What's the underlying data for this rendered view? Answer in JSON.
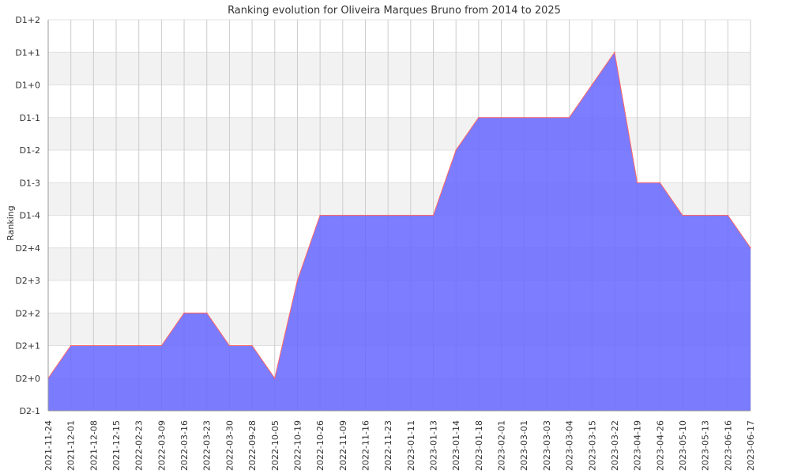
{
  "chart_data": {
    "type": "area",
    "title": "Ranking evolution for Oliveira Marques Bruno from 2014 to 2025",
    "xlabel": "",
    "ylabel": "Ranking",
    "y_levels": [
      "D2-1",
      "D2+0",
      "D2+1",
      "D2+2",
      "D2+3",
      "D2+4",
      "D1-4",
      "D1-3",
      "D1-2",
      "D1-1",
      "D1+0",
      "D1+1",
      "D1+2"
    ],
    "categories": [
      "2021-11-24",
      "2021-12-01",
      "2021-12-08",
      "2021-12-15",
      "2022-02-23",
      "2022-03-09",
      "2022-03-16",
      "2022-03-23",
      "2022-03-30",
      "2022-09-28",
      "2022-10-05",
      "2022-10-19",
      "2022-10-26",
      "2022-11-09",
      "2022-11-16",
      "2022-11-23",
      "2023-01-11",
      "2023-01-13",
      "2023-01-14",
      "2023-01-18",
      "2023-02-01",
      "2023-03-01",
      "2023-03-03",
      "2023-03-04",
      "2023-03-15",
      "2023-03-22",
      "2023-04-19",
      "2023-04-26",
      "2023-05-10",
      "2023-05-13",
      "2023-06-16",
      "2023-06-17"
    ],
    "series": [
      {
        "values": [
          "D2+0",
          "D2+1",
          "D2+1",
          "D2+1",
          "D2+1",
          "D2+1",
          "D2+2",
          "D2+2",
          "D2+1",
          "D2+1",
          "D2+0",
          "D2+3",
          "D1-4",
          "D1-4",
          "D1-4",
          "D1-4",
          "D1-4",
          "D1-4",
          "D1-2",
          "D1-1",
          "D1-1",
          "D1-1",
          "D1-1",
          "D1-1",
          "D1+0",
          "D1+1",
          "D1-3",
          "D1-3",
          "D1-4",
          "D1-4",
          "D1-4",
          "D2+4"
        ]
      }
    ],
    "fill_color": "#6666ff",
    "line_color": "#ff6666",
    "grid": true,
    "band_colors": [
      "#ffffff",
      "#f2f2f2"
    ],
    "legend": "none"
  }
}
